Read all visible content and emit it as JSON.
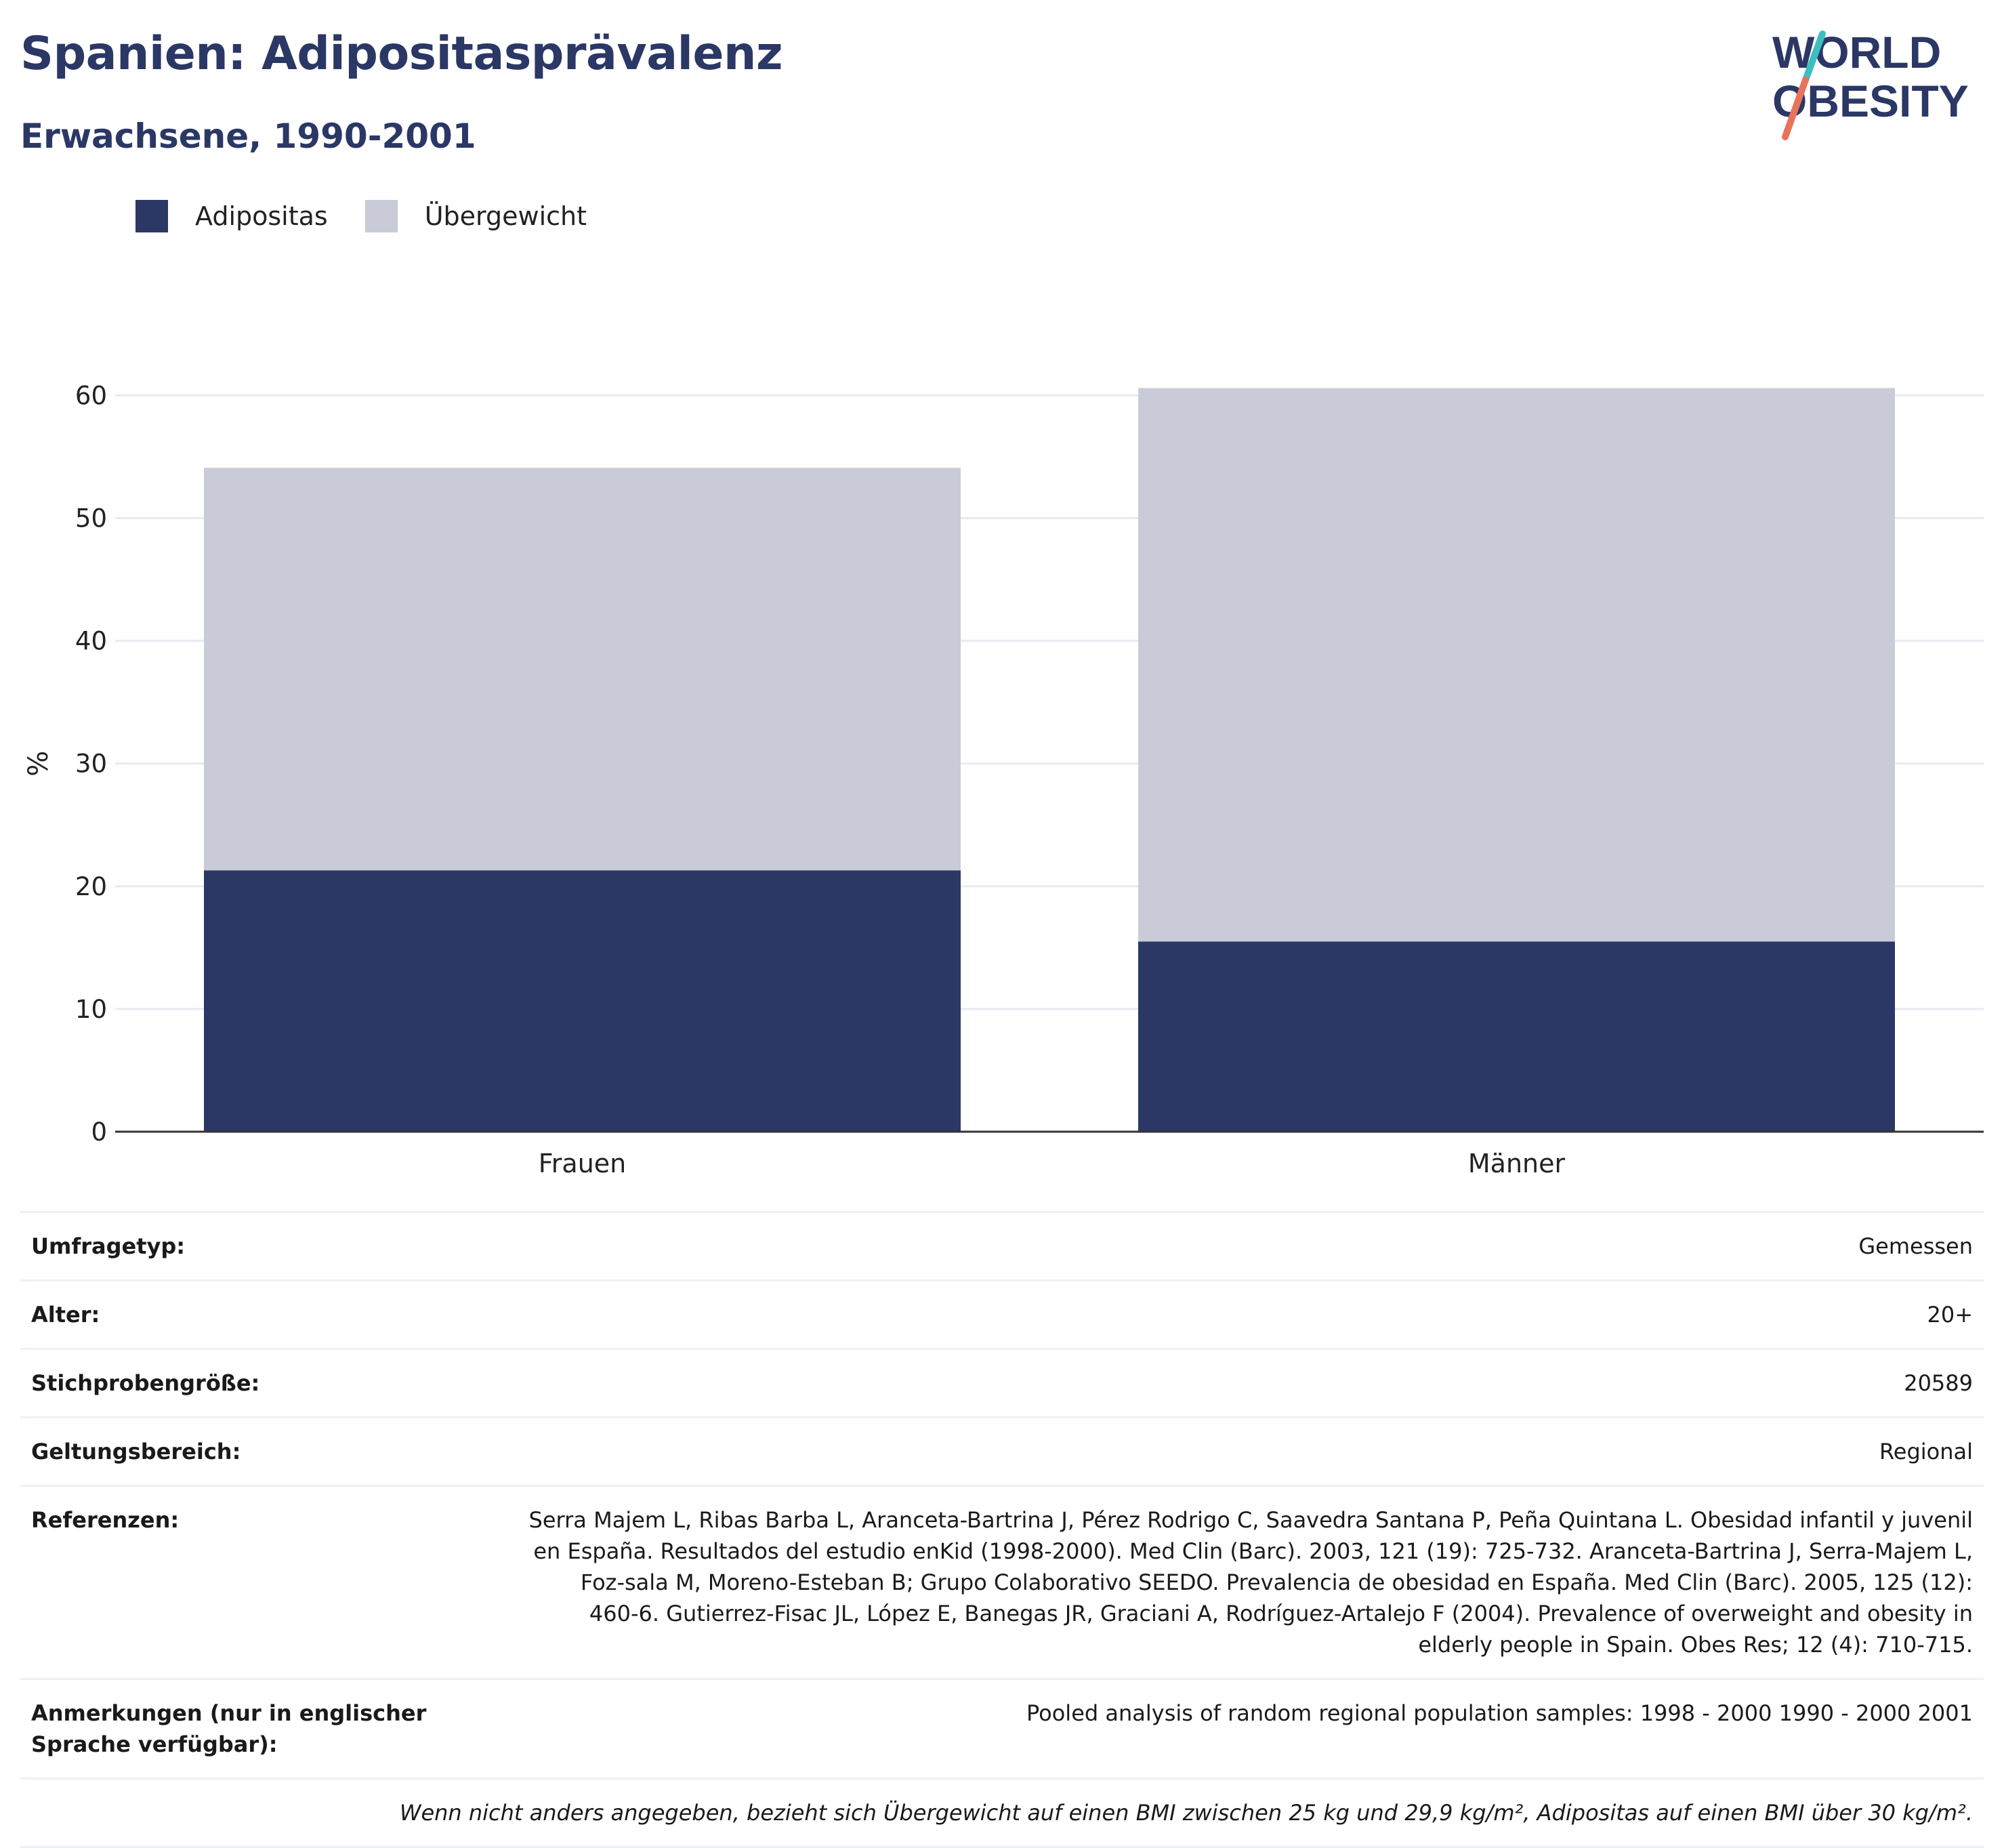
{
  "header": {
    "title": "Spanien: Adipositasprävalenz",
    "subtitle": "Erwachsene, 1990-2001"
  },
  "logo": {
    "line1": "WORLD",
    "line2": "OBESITY",
    "name": "world-obesity-logo"
  },
  "colors": {
    "adipositas": "#2b3765",
    "uebergewicht": "#c9ccd8",
    "grid": "#e9eaf0",
    "axis": "#333333",
    "title": "#2b3765"
  },
  "legend": [
    {
      "label": "Adipositas",
      "color": "#2b3765"
    },
    {
      "label": "Übergewicht",
      "color": "#c9ccd8"
    }
  ],
  "chart_data": {
    "type": "bar",
    "stacked": true,
    "categories": [
      "Frauen",
      "Männer"
    ],
    "series": [
      {
        "name": "Adipositas",
        "values": [
          21.3,
          15.5
        ]
      },
      {
        "name": "Übergewicht",
        "values": [
          32.8,
          45.1
        ]
      }
    ],
    "title": "Spanien: Adipositasprävalenz",
    "subtitle": "Erwachsene, 1990-2001",
    "xlabel": "",
    "ylabel": "%",
    "ylim": [
      0,
      60
    ],
    "yticks": [
      0,
      10,
      20,
      30,
      40,
      50,
      60
    ],
    "grid": true,
    "legend_position": "top-left"
  },
  "info": {
    "rows": [
      {
        "key": "Umfragetyp:",
        "value": "Gemessen"
      },
      {
        "key": "Alter:",
        "value": "20+"
      },
      {
        "key": "Stichprobengröße:",
        "value": "20589"
      },
      {
        "key": "Geltungsbereich:",
        "value": "Regional"
      },
      {
        "key": "Referenzen:",
        "value": "Serra Majem L, Ribas Barba L, Aranceta-Bartrina J, Pérez Rodrigo C, Saavedra Santana P, Peña Quintana L. Obesidad infantil y juvenil en España. Resultados del estudio enKid (1998-2000). Med Clin (Barc). 2003, 121 (19): 725-732. Aranceta-Bartrina J, Serra-Majem L, Foz-sala M, Moreno-Esteban B; Grupo Colaborativo SEEDO. Prevalencia de obesidad en España. Med Clin (Barc). 2005, 125 (12): 460-6. Gutierrez-Fisac JL, López E, Banegas JR, Graciani A, Rodríguez-Artalejo F (2004). Prevalence of overweight and obesity in elderly people in Spain. Obes Res; 12 (4): 710-715."
      },
      {
        "key": "Anmerkungen (nur in englischer Sprache verfügbar):",
        "value": "Pooled analysis of random regional population samples: 1998 - 2000 1990 - 2000 2001"
      }
    ],
    "footnote": "Wenn nicht anders angegeben, bezieht sich Übergewicht auf einen BMI zwischen 25 kg und 29,9 kg/m², Adipositas auf einen BMI über 30 kg/m²."
  }
}
